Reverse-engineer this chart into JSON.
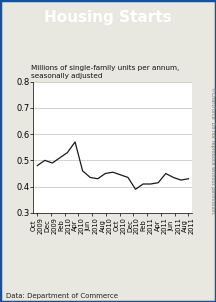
{
  "title": "Housing Starts",
  "subtitle": "Millions of single-family units per annum,\nseasonally adjusted",
  "footer": "Data: Department of Commerce",
  "watermark": "©ChartForce  Do not reproduce without permission.",
  "title_bg_color": "#1a4fa0",
  "title_text_color": "#ffffff",
  "line_color": "#1a1a1a",
  "background_color": "#e8e8e0",
  "plot_bg_color": "#ffffff",
  "border_color": "#1a4fa0",
  "ylim": [
    0.3,
    0.8
  ],
  "yticks": [
    0.3,
    0.4,
    0.5,
    0.6,
    0.7,
    0.8
  ],
  "x_labels": [
    "Oct\n2009",
    "Dec\n2009",
    "Feb\n2010",
    "Apr\n2010",
    "Jun\n2010",
    "Aug\n2010",
    "Oct\n2010",
    "Dec\n2010",
    "Feb\n2011",
    "Apr\n2011",
    "Jun\n2011",
    "Aug\n2011"
  ],
  "values": [
    0.48,
    0.5,
    0.49,
    0.51,
    0.53,
    0.57,
    0.46,
    0.435,
    0.43,
    0.45,
    0.455,
    0.445,
    0.435,
    0.39,
    0.41,
    0.41,
    0.415,
    0.45,
    0.435,
    0.425,
    0.43
  ],
  "n_points": 21
}
